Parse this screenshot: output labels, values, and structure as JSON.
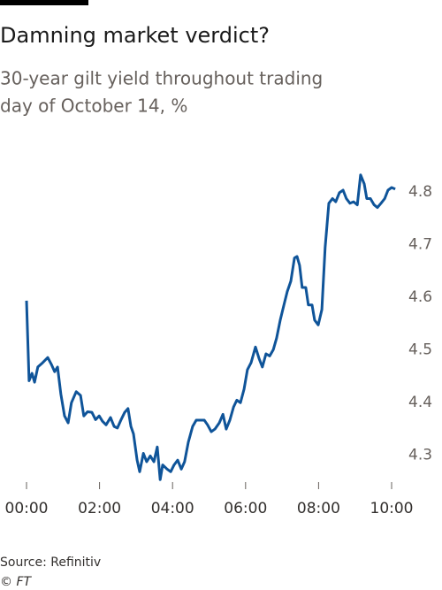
{
  "chart_data": {
    "type": "line",
    "title": "Damning market verdict?",
    "subtitle": [
      "30-year gilt yield throughout trading",
      "day of October 14, %"
    ],
    "source": "Source: Refinitiv",
    "credit": "© FT",
    "x": [
      0,
      0.07,
      0.15,
      0.22,
      0.31,
      0.44,
      0.58,
      0.68,
      0.77,
      0.85,
      0.94,
      1.04,
      1.14,
      1.23,
      1.36,
      1.48,
      1.57,
      1.67,
      1.79,
      1.89,
      1.99,
      2.08,
      2.18,
      2.3,
      2.4,
      2.49,
      2.59,
      2.69,
      2.78,
      2.86,
      2.93,
      3.03,
      3.1,
      3.2,
      3.29,
      3.39,
      3.49,
      3.58,
      3.66,
      3.73,
      3.85,
      3.95,
      4.04,
      4.14,
      4.24,
      4.33,
      4.43,
      4.55,
      4.65,
      4.75,
      4.87,
      4.96,
      5.06,
      5.16,
      5.28,
      5.38,
      5.47,
      5.57,
      5.67,
      5.76,
      5.86,
      5.96,
      6.05,
      6.15,
      6.27,
      6.37,
      6.46,
      6.56,
      6.66,
      6.76,
      6.85,
      6.95,
      7.05,
      7.14,
      7.24,
      7.34,
      7.41,
      7.48,
      7.55,
      7.65,
      7.72,
      7.82,
      7.89,
      7.99,
      8.09,
      8.18,
      8.28,
      8.38,
      8.47,
      8.57,
      8.67,
      8.76,
      8.86,
      8.96,
      9.06,
      9.15,
      9.25,
      9.32,
      9.42,
      9.52,
      9.61,
      9.71,
      9.81,
      9.9,
      10.0,
      10.1
    ],
    "series": [
      {
        "name": "30-year gilt yield",
        "color": "#0f5499",
        "values": [
          4.593,
          4.441,
          4.455,
          4.438,
          4.467,
          4.475,
          4.485,
          4.472,
          4.458,
          4.467,
          4.416,
          4.374,
          4.361,
          4.399,
          4.42,
          4.413,
          4.374,
          4.382,
          4.381,
          4.367,
          4.374,
          4.364,
          4.357,
          4.371,
          4.354,
          4.351,
          4.367,
          4.381,
          4.388,
          4.354,
          4.34,
          4.29,
          4.268,
          4.303,
          4.287,
          4.298,
          4.287,
          4.315,
          4.253,
          4.281,
          4.273,
          4.268,
          4.281,
          4.29,
          4.273,
          4.287,
          4.324,
          4.354,
          4.366,
          4.366,
          4.366,
          4.357,
          4.344,
          4.349,
          4.361,
          4.377,
          4.349,
          4.366,
          4.391,
          4.404,
          4.399,
          4.425,
          4.462,
          4.475,
          4.505,
          4.483,
          4.467,
          4.492,
          4.488,
          4.5,
          4.522,
          4.556,
          4.585,
          4.61,
          4.63,
          4.674,
          4.677,
          4.66,
          4.618,
          4.618,
          4.585,
          4.585,
          4.556,
          4.547,
          4.576,
          4.694,
          4.778,
          4.787,
          4.781,
          4.798,
          4.803,
          4.787,
          4.778,
          4.781,
          4.775,
          4.832,
          4.815,
          4.787,
          4.787,
          4.775,
          4.77,
          4.778,
          4.787,
          4.803,
          4.808,
          4.805
        ]
      }
    ],
    "xlim": [
      0,
      10
    ],
    "xticks": [
      {
        "value": 0,
        "label": "00:00"
      },
      {
        "value": 2,
        "label": "02:00"
      },
      {
        "value": 4,
        "label": "04:00"
      },
      {
        "value": 6,
        "label": "06:00"
      },
      {
        "value": 8,
        "label": "08:00"
      },
      {
        "value": 10,
        "label": "10:00"
      }
    ],
    "ylim": [
      4.25,
      4.85
    ],
    "yticks": [
      4.3,
      4.4,
      4.5,
      4.6,
      4.7,
      4.8
    ],
    "grid": false
  }
}
